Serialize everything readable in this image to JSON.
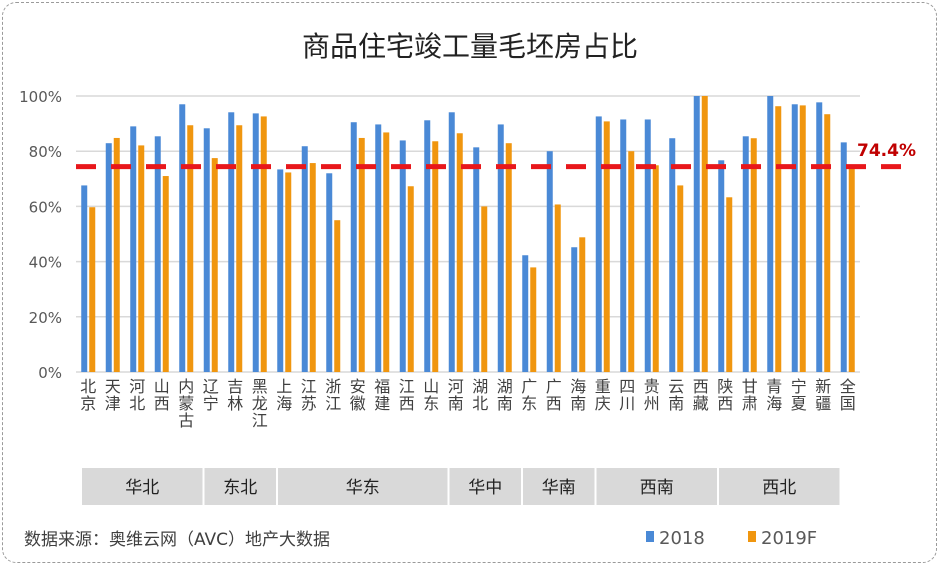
{
  "chart_data": {
    "type": "bar",
    "title": "商品住宅竣工量毛坯房占比",
    "categories": [
      "北京",
      "天津",
      "河北",
      "山西",
      "内蒙古",
      "辽宁",
      "吉林",
      "黑龙江",
      "上海",
      "江苏",
      "浙江",
      "安徽",
      "福建",
      "江西",
      "山东",
      "河南",
      "湖北",
      "湖南",
      "广东",
      "广西",
      "海南",
      "重庆",
      "四川",
      "贵州",
      "云南",
      "西藏",
      "陕西",
      "甘肃",
      "青海",
      "宁夏",
      "新疆",
      "全国"
    ],
    "groups": [
      {
        "name": "华北",
        "count": 5
      },
      {
        "name": "东北",
        "count": 3
      },
      {
        "name": "华东",
        "count": 7
      },
      {
        "name": "华中",
        "count": 3
      },
      {
        "name": "华南",
        "count": 3
      },
      {
        "name": "西南",
        "count": 5
      },
      {
        "name": "西北",
        "count": 5
      }
    ],
    "series": [
      {
        "name": "2018",
        "color": "#4a89d6",
        "values": [
          67.6,
          82.9,
          89.0,
          85.4,
          97.0,
          88.3,
          94.1,
          93.7,
          73.4,
          81.8,
          72.0,
          90.5,
          89.7,
          83.9,
          91.2,
          94.1,
          81.4,
          89.7,
          42.3,
          80.0,
          45.2,
          92.6,
          91.5,
          91.5,
          84.7,
          100,
          76.7,
          85.4,
          100,
          97.0,
          97.7,
          83.2
        ]
      },
      {
        "name": "2019F",
        "color": "#f0960f",
        "values": [
          59.7,
          84.8,
          82.1,
          71.0,
          89.4,
          77.5,
          89.4,
          92.6,
          72.3,
          75.7,
          55.0,
          84.8,
          86.8,
          67.3,
          83.6,
          86.5,
          60.0,
          82.9,
          37.9,
          60.7,
          48.8,
          90.8,
          80.0,
          74.9,
          67.6,
          100,
          63.3,
          84.7,
          96.3,
          96.6,
          93.4,
          74.4
        ]
      }
    ],
    "reference_line": {
      "value": 74.4,
      "label": "74.4%",
      "color": "#e8171b",
      "label_color": "#c00000"
    },
    "ylim": [
      0,
      100
    ],
    "yticks": [
      "0%",
      "20%",
      "40%",
      "60%",
      "80%",
      "100%"
    ],
    "grid": true,
    "legend": "bottom-right",
    "source": "数据来源：奥维云网（AVC）地产大数据"
  }
}
